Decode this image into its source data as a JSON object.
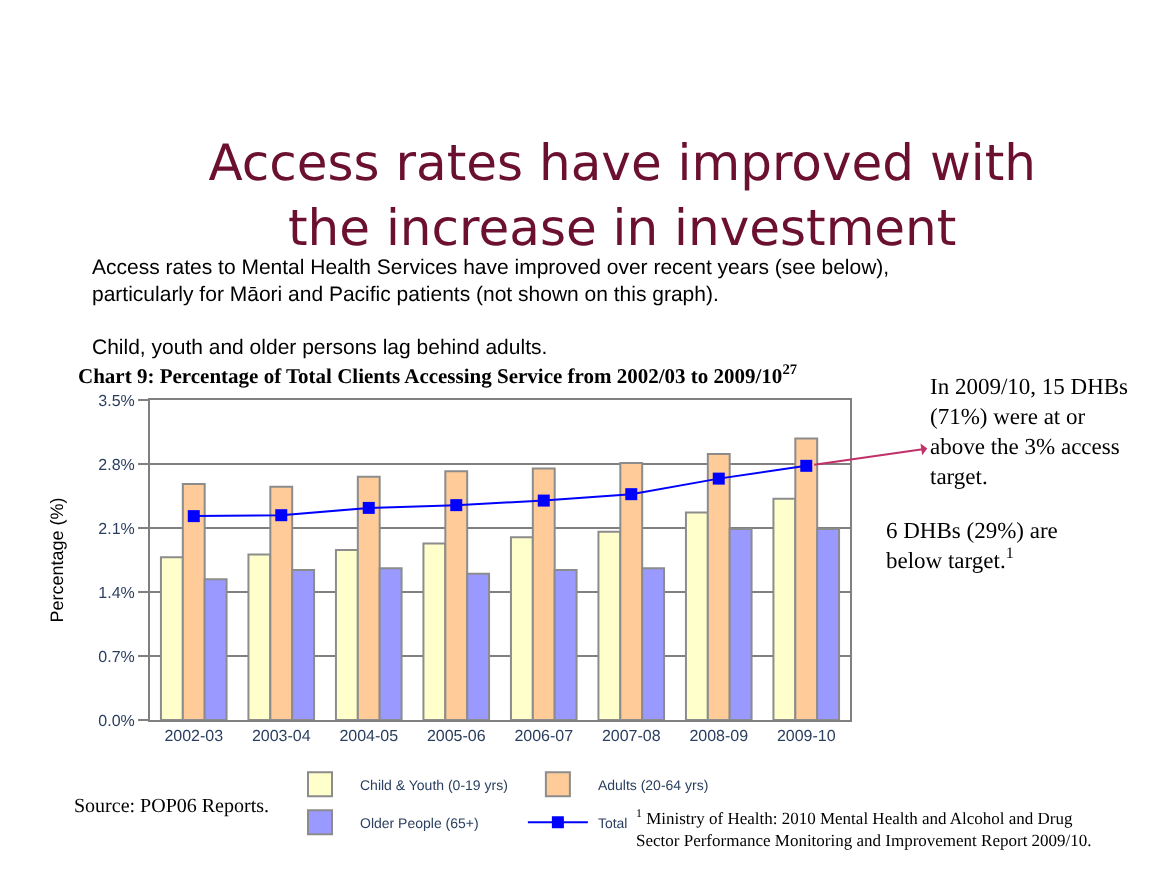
{
  "chart_data": {
    "type": "bar",
    "title": "Access rates have improved with the increase in investment",
    "subtitle": "Chart 9: Percentage of Total Clients Accessing Service from 2002/03 to 2009/10$^{27}$",
    "ylabel": "Percentage (%)",
    "categories": [
      "2002-03",
      "2003-04",
      "2004-05",
      "2005-06",
      "2006-07",
      "2007-08",
      "2008-09",
      "2009-10"
    ],
    "series": [
      {
        "name": "Child & Youth (0-19 yrs)",
        "color": "#ffffcc",
        "values": [
          1.78,
          1.81,
          1.86,
          1.93,
          2.0,
          2.06,
          2.27,
          2.42
        ]
      },
      {
        "name": "Adults (20-64 yrs)",
        "color": "#ffcc99",
        "values": [
          2.58,
          2.55,
          2.66,
          2.72,
          2.75,
          2.81,
          2.91,
          3.08
        ]
      },
      {
        "name": "Older People (65+)",
        "color": "#9999ff",
        "values": [
          1.54,
          1.64,
          1.66,
          1.6,
          1.64,
          1.66,
          2.09,
          2.09
        ]
      },
      {
        "name": "Total",
        "color": "#0000ff",
        "type": "line",
        "values": [
          2.23,
          2.24,
          2.32,
          2.35,
          2.4,
          2.47,
          2.64,
          2.78
        ]
      }
    ],
    "ylim": [
      0,
      3.5
    ],
    "yticks": [
      {
        "value": 0,
        "label": "0.0%"
      },
      {
        "value": 0.7,
        "label": "0.7%"
      },
      {
        "value": 1.4,
        "label": "1.4%"
      },
      {
        "value": 2.1,
        "label": "2.1%"
      },
      {
        "value": 2.8,
        "label": "2.8%"
      },
      {
        "value": 3.5,
        "label": "3.5%"
      }
    ],
    "grid": "y",
    "legend": "bottom",
    "marker": "square",
    "annotations": [
      "Access rates to Mental Health Services have improved over recent years (see below), particularly for Māori and Pacific patients (not shown on this graph).",
      "Child, youth and older persons lag behind adults.",
      {
        "text": "In 2009/10, 15 DHBs (71%) were at or above the 3% access target.",
        "x": "2009-10",
        "y": 2.78
      },
      "6 DHBs (29%) are below target.$^{1}$",
      "Source: POP06 Reports.",
      "$^{1}$ Ministry of Health: 2010 Mental Health and Alcohol and Drug Sector Performance Monitoring and Improvement Report 2009/10."
    ]
  }
}
